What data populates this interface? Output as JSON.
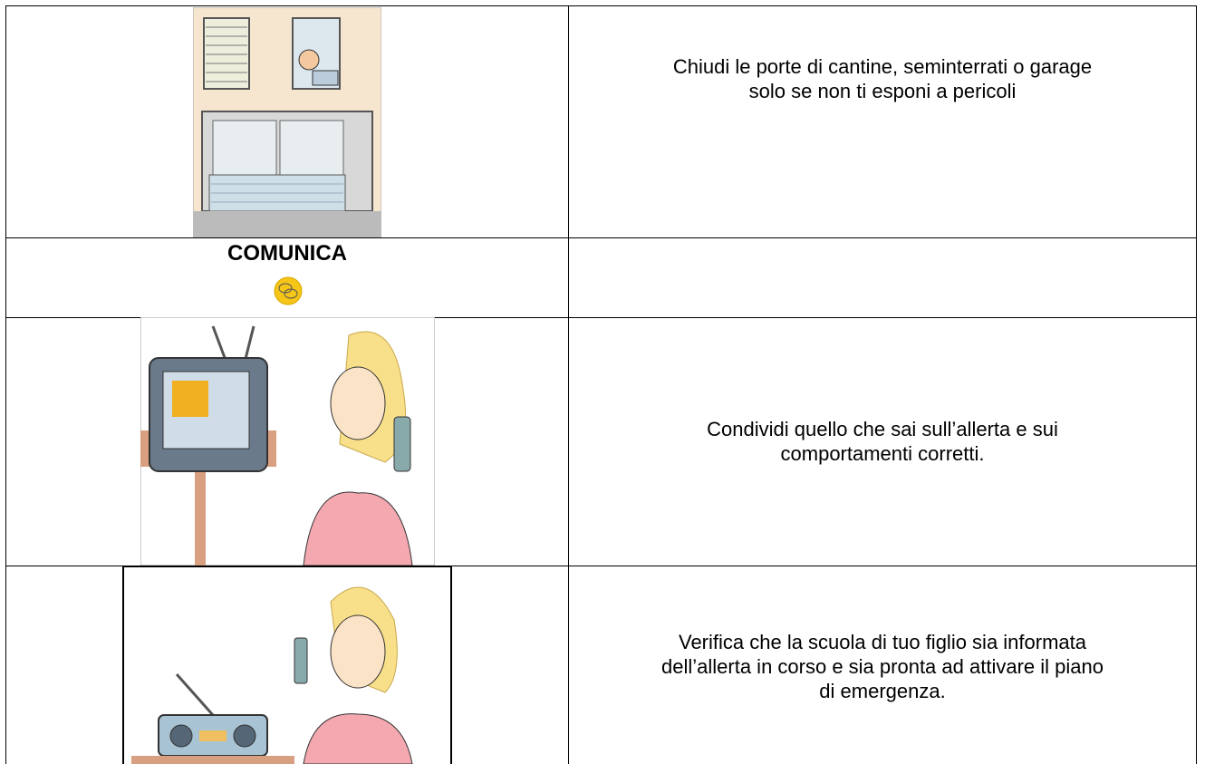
{
  "table": {
    "rows": [
      {
        "text": [
          "Chiudi le porte di cantine, seminterrati o garage",
          "solo se non ti esponi a pericoli"
        ]
      },
      {
        "heading": "COMUNICA"
      },
      {
        "text": [
          "Condividi quello che sai sull’allerta e sui",
          "comportamenti corretti."
        ]
      },
      {
        "text": [
          "Verifica che la scuola di tuo figlio sia informata",
          "dell’allerta in corso e sia pronta ad attivare il piano",
          "di emergenza."
        ]
      }
    ]
  }
}
